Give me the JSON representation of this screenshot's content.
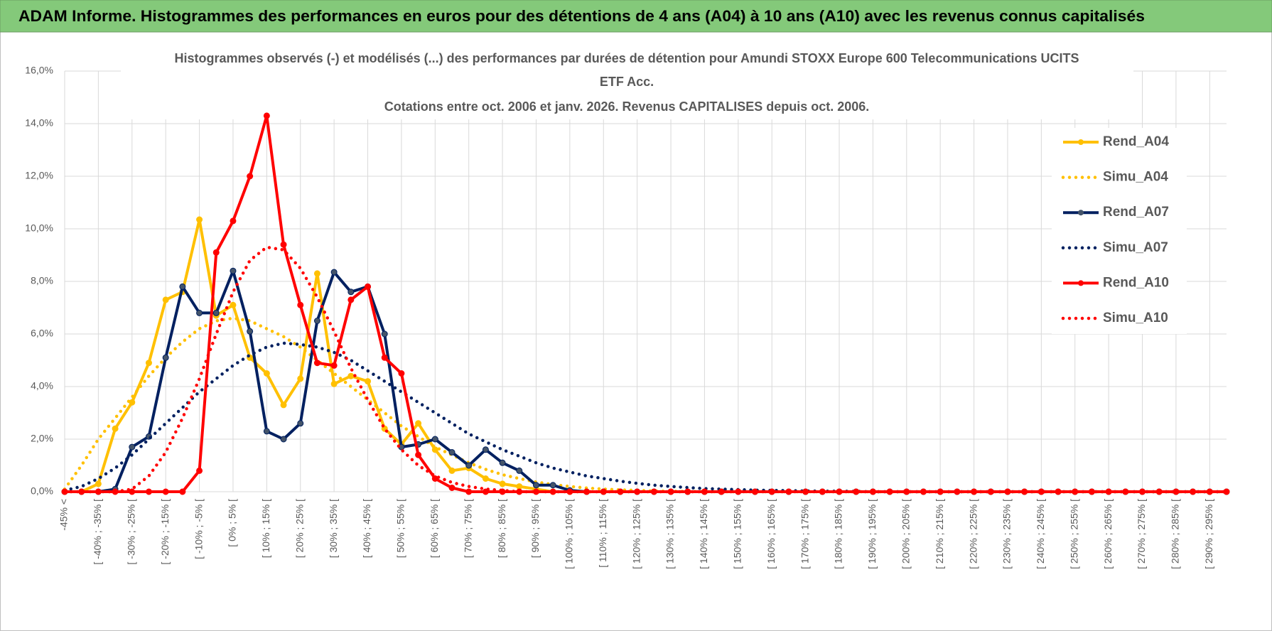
{
  "header": "ADAM Informe. Histogrammes des performances en euros pour des détentions de 4 ans (A04) à 10 ans (A10) avec les revenus connus capitalisés",
  "chart_data": {
    "type": "line",
    "title": [
      "Histogrammes observés (-) et modélisés (...) des performances par durées de détention pour Amundi STOXX Europe 600 Telecommunications UCITS",
      "ETF Acc.",
      "Cotations entre oct. 2006 et janv. 2026. Revenus CAPITALISES depuis oct. 2006."
    ],
    "categories": [
      "-45% <",
      null,
      "[ -40% ; -35% [",
      null,
      "[ -30% ; -25% [",
      null,
      "[ -20% ; -15% [",
      null,
      "[ -10% ; -5% [",
      null,
      "[ 0% ; 5% [",
      null,
      "[ 10% ; 15% [",
      null,
      "[ 20% ; 25% [",
      null,
      "[ 30% ; 35% [",
      null,
      "[ 40% ; 45% [",
      null,
      "[ 50% ; 55% [",
      null,
      "[ 60% ; 65% [",
      null,
      "[ 70% ; 75% [",
      null,
      "[ 80% ; 85% [",
      null,
      "[ 90% ; 95% [",
      null,
      "[ 100% ; 105% [",
      null,
      "[ 110% ; 115% [",
      null,
      "[ 120% ; 125% [",
      null,
      "[ 130% ; 135% [",
      null,
      "[ 140% ; 145% [",
      null,
      "[ 150% ; 155% [",
      null,
      "[ 160% ; 165% [",
      null,
      "[ 170% ; 175% [",
      null,
      "[ 180% ; 185% [",
      null,
      "[ 190% ; 195% [",
      null,
      "[ 200% ; 205% [",
      null,
      "[ 210% ; 215% [",
      null,
      "[ 220% ; 225% [",
      null,
      "[ 230% ; 235% [",
      null,
      "[ 240% ; 245% [",
      null,
      "[ 250% ; 255% [",
      null,
      "[ 260% ; 265% [",
      null,
      "[ 270% ; 275% [",
      null,
      "[ 280% ; 285% [",
      null,
      "[ 290% ; 295% [",
      null
    ],
    "series": [
      {
        "name": "Rend_A04",
        "color": "#ffc000",
        "style": "solid",
        "markers": true,
        "values": [
          0,
          0,
          0.3,
          2.4,
          3.4,
          4.9,
          7.3,
          7.6,
          10.35,
          6.7,
          7.1,
          5.1,
          4.5,
          3.3,
          4.3,
          8.3,
          4.1,
          4.4,
          4.2,
          2.4,
          1.8,
          2.6,
          1.6,
          0.8,
          0.9,
          0.5,
          0.3,
          0.2,
          0.1,
          0,
          0,
          0,
          0,
          0,
          0,
          0,
          0,
          0,
          0,
          0,
          0,
          0,
          0,
          0,
          0,
          0,
          0,
          0,
          0,
          0,
          0,
          0,
          0,
          0,
          0,
          0,
          0,
          0,
          0,
          0,
          0,
          0,
          0,
          0,
          0,
          0,
          0,
          0,
          0,
          0
        ]
      },
      {
        "name": "Simu_A04",
        "color": "#ffc000",
        "style": "dotted",
        "markers": false,
        "values": [
          0.1,
          1.0,
          2.0,
          2.8,
          3.6,
          4.4,
          5.1,
          5.7,
          6.2,
          6.5,
          6.6,
          6.5,
          6.2,
          5.9,
          5.5,
          5.0,
          4.5,
          4.0,
          3.5,
          3.0,
          2.5,
          2.1,
          1.7,
          1.4,
          1.1,
          0.85,
          0.65,
          0.5,
          0.37,
          0.27,
          0.2,
          0.14,
          0.1,
          0.07,
          0.05,
          0.03,
          0.02,
          0.01,
          0,
          0,
          0,
          0,
          0,
          0,
          0,
          0,
          0,
          0,
          0,
          0,
          0,
          0,
          0,
          0,
          0,
          0,
          0,
          0,
          0,
          0,
          0,
          0,
          0,
          0,
          0,
          0,
          0,
          0,
          0,
          0
        ]
      },
      {
        "name": "Rend_A07",
        "color": "#002060",
        "style": "solid",
        "markers": true,
        "values": [
          0,
          0,
          0,
          0.1,
          1.7,
          2.1,
          5.1,
          7.8,
          6.8,
          6.8,
          8.4,
          6.1,
          2.3,
          2.0,
          2.6,
          6.5,
          8.35,
          7.6,
          7.8,
          6.0,
          1.7,
          1.8,
          2.0,
          1.5,
          1.0,
          1.6,
          1.1,
          0.8,
          0.25,
          0.25,
          0.05,
          0,
          0,
          0,
          0,
          0,
          0,
          0,
          0,
          0,
          0,
          0,
          0,
          0,
          0,
          0,
          0,
          0,
          0,
          0,
          0,
          0,
          0,
          0,
          0,
          0,
          0,
          0,
          0,
          0,
          0,
          0,
          0,
          0,
          0,
          0,
          0,
          0,
          0,
          0
        ]
      },
      {
        "name": "Simu_A07",
        "color": "#002060",
        "style": "dotted",
        "markers": false,
        "values": [
          0.05,
          0.2,
          0.5,
          0.9,
          1.4,
          2.0,
          2.6,
          3.2,
          3.8,
          4.3,
          4.8,
          5.2,
          5.5,
          5.65,
          5.6,
          5.5,
          5.3,
          5.0,
          4.6,
          4.2,
          3.8,
          3.4,
          3.0,
          2.6,
          2.2,
          1.9,
          1.6,
          1.35,
          1.1,
          0.9,
          0.75,
          0.6,
          0.5,
          0.4,
          0.32,
          0.25,
          0.2,
          0.16,
          0.12,
          0.1,
          0.08,
          0.06,
          0.05,
          0.04,
          0.03,
          0.02,
          0.02,
          0.01,
          0,
          0,
          0,
          0,
          0,
          0,
          0,
          0,
          0,
          0,
          0,
          0,
          0,
          0,
          0,
          0,
          0,
          0,
          0,
          0,
          0,
          0
        ]
      },
      {
        "name": "Rend_A10",
        "color": "#ff0000",
        "style": "solid",
        "markers": true,
        "values": [
          0,
          0,
          0,
          0,
          0,
          0,
          0,
          0,
          0.8,
          9.1,
          10.3,
          12.0,
          14.3,
          9.4,
          7.1,
          4.9,
          4.8,
          7.3,
          7.8,
          5.1,
          4.5,
          1.4,
          0.5,
          0.15,
          0,
          0,
          0,
          0,
          0,
          0,
          0,
          0,
          0,
          0,
          0,
          0,
          0,
          0,
          0,
          0,
          0,
          0,
          0,
          0,
          0,
          0,
          0,
          0,
          0,
          0,
          0,
          0,
          0,
          0,
          0,
          0,
          0,
          0,
          0,
          0,
          0,
          0,
          0,
          0,
          0,
          0,
          0,
          0,
          0,
          0
        ]
      },
      {
        "name": "Simu_A10",
        "color": "#ff0000",
        "style": "dotted",
        "markers": false,
        "values": [
          0,
          0,
          0,
          0,
          0.1,
          0.6,
          1.5,
          2.8,
          4.3,
          6.0,
          7.6,
          8.8,
          9.3,
          9.2,
          8.5,
          7.4,
          6.1,
          4.7,
          3.5,
          2.4,
          1.6,
          1.0,
          0.6,
          0.35,
          0.2,
          0.1,
          0.05,
          0,
          0,
          0,
          0,
          0,
          0,
          0,
          0,
          0,
          0,
          0,
          0,
          0,
          0,
          0,
          0,
          0,
          0,
          0,
          0,
          0,
          0,
          0,
          0,
          0,
          0,
          0,
          0,
          0,
          0,
          0,
          0,
          0,
          0,
          0,
          0,
          0,
          0,
          0,
          0,
          0,
          0,
          0
        ]
      }
    ],
    "ylim": [
      0,
      16
    ],
    "yticks": [
      {
        "value": 0,
        "label": "0,0%"
      },
      {
        "value": 2,
        "label": "2,0%"
      },
      {
        "value": 4,
        "label": "4,0%"
      },
      {
        "value": 6,
        "label": "6,0%"
      },
      {
        "value": 8,
        "label": "8,0%"
      },
      {
        "value": 10,
        "label": "10,0%"
      },
      {
        "value": 12,
        "label": "12,0%"
      },
      {
        "value": 14,
        "label": "14,0%"
      },
      {
        "value": 16,
        "label": "16,0%"
      }
    ],
    "grid": true,
    "legend": "right"
  }
}
